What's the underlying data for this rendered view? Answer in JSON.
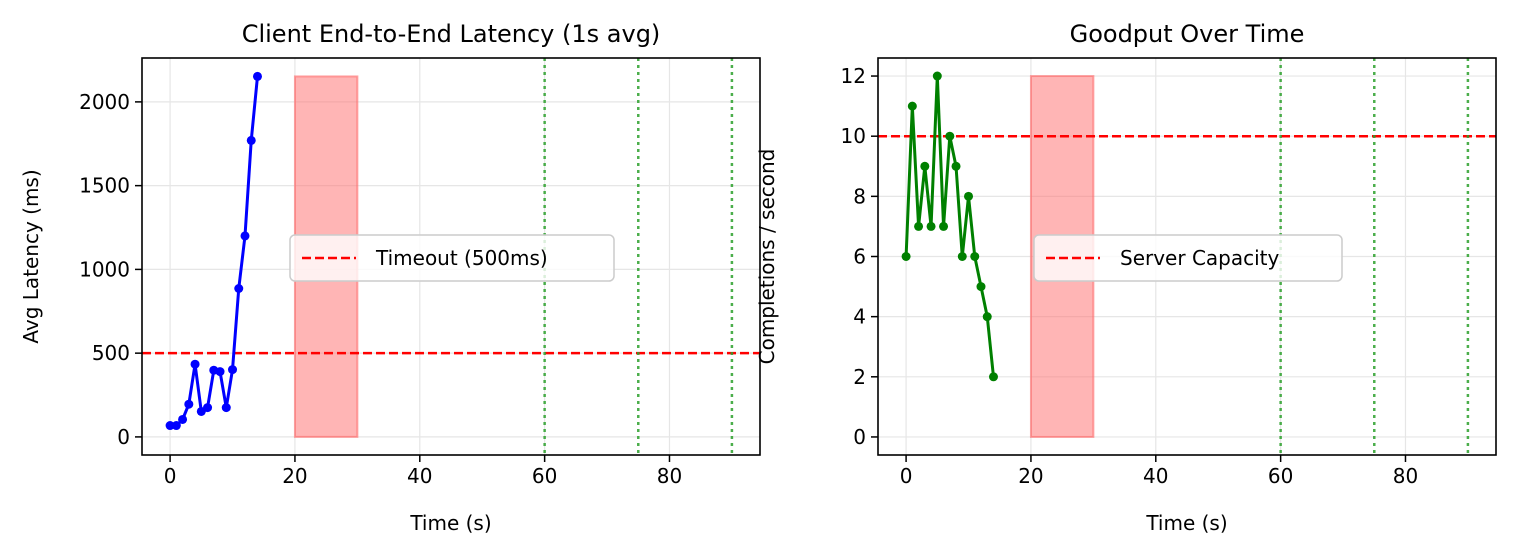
{
  "chart_data": [
    {
      "type": "line",
      "title": "Client End-to-End Latency (1s avg)",
      "xlabel": "Time (s)",
      "ylabel": "Avg Latency (ms)",
      "xlim": [
        -4.5,
        94.5
      ],
      "ylim": [
        -108,
        2262
      ],
      "xticks": [
        0,
        20,
        40,
        60,
        80
      ],
      "yticks": [
        0,
        500,
        1000,
        1500,
        2000
      ],
      "grid": true,
      "legend_placement": "center",
      "series": [
        {
          "x": [
            0,
            1,
            2,
            3,
            4,
            5,
            6,
            7,
            8,
            9,
            10,
            11,
            12,
            13,
            14
          ],
          "values": [
            68,
            68,
            104,
            195,
            434,
            152,
            175,
            398,
            390,
            175,
            402,
            886,
            1200,
            1770,
            2152
          ],
          "color": "#0000ff",
          "marker": "circle"
        }
      ],
      "hlines": [
        {
          "y": 500,
          "name": "Timeout (500ms)",
          "color": "#ff0000",
          "style": "dashed"
        }
      ],
      "vlines": [
        {
          "x": 60,
          "color": "#2ca02c",
          "style": "dotted"
        },
        {
          "x": 75,
          "color": "#2ca02c",
          "style": "dotted"
        },
        {
          "x": 90,
          "color": "#2ca02c",
          "style": "dotted"
        }
      ],
      "spans": [
        {
          "x0": 20,
          "x1": 30,
          "y0": 0,
          "y1": 2152,
          "color": "#ff6b6b"
        }
      ]
    },
    {
      "type": "line",
      "title": "Goodput Over Time",
      "xlabel": "Time (s)",
      "ylabel": "Completions / second",
      "xlim": [
        -4.5,
        94.5
      ],
      "ylim": [
        -0.6,
        12.6
      ],
      "xticks": [
        0,
        20,
        40,
        60,
        80
      ],
      "yticks": [
        0,
        2,
        4,
        6,
        8,
        10,
        12
      ],
      "grid": true,
      "legend_placement": "center",
      "series": [
        {
          "x": [
            0,
            1,
            2,
            3,
            4,
            5,
            6,
            7,
            8,
            9,
            10,
            11,
            12,
            13,
            14
          ],
          "values": [
            6,
            11,
            7,
            9,
            7,
            12,
            7,
            10,
            9,
            6,
            8,
            6,
            5,
            4,
            2
          ],
          "color": "#008000",
          "marker": "circle"
        }
      ],
      "hlines": [
        {
          "y": 10,
          "name": "Server Capacity",
          "color": "#ff0000",
          "style": "dashed"
        }
      ],
      "vlines": [
        {
          "x": 60,
          "color": "#2ca02c",
          "style": "dotted"
        },
        {
          "x": 75,
          "color": "#2ca02c",
          "style": "dotted"
        },
        {
          "x": 90,
          "color": "#2ca02c",
          "style": "dotted"
        }
      ],
      "spans": [
        {
          "x0": 20,
          "x1": 30,
          "y0": 0,
          "y1": 12,
          "color": "#ff6b6b"
        }
      ]
    }
  ]
}
